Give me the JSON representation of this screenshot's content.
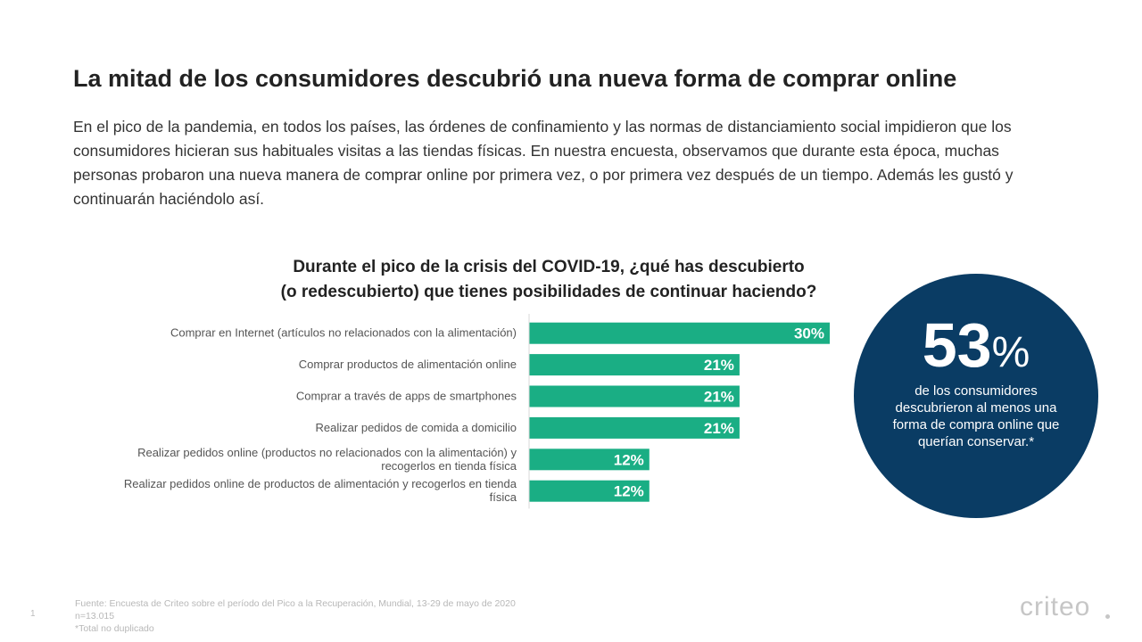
{
  "slide": {
    "title": "La mitad de los consumidores descubrió una nueva forma de comprar online",
    "intro": "En el pico de la pandemia, en todos los países, las órdenes de confinamiento y las normas de distanciamiento social impidieron que los consumidores hicieran sus habituales visitas a las tiendas físicas. En nuestra encuesta, observamos que durante esta época, muchas personas probaron una nueva manera de comprar online por primera vez, o por primera vez después de un tiempo. Además les gustó y continuarán haciéndolo así.",
    "page_number": "1",
    "footnotes": [
      "Fuente: Encuesta de Criteo sobre el período del Pico a la Recuperación, Mundial, 13-29 de mayo de 2020",
      "n=13.015",
      "*Total no duplicado"
    ],
    "logo": "criteo"
  },
  "stat": {
    "value": "53",
    "unit": "%",
    "caption": "de los consumidores descubrieron al menos una forma de compra online que querían conservar.*"
  },
  "colors": {
    "bar": "#1aae84",
    "circle": "#0a3c64",
    "axis": "#d9d9d9"
  },
  "chart_data": {
    "type": "bar",
    "orientation": "horizontal",
    "title_lines": [
      "Durante el pico de la crisis del COVID-19, ¿qué has descubierto",
      "(o redescubierto) que tienes posibilidades de continuar haciendo?"
    ],
    "categories": [
      [
        "Comprar en Internet (artículos no relacionados con la alimentación)"
      ],
      [
        "Comprar productos de alimentación online"
      ],
      [
        "Comprar a través de apps de smartphones"
      ],
      [
        "Realizar pedidos de comida a domicilio"
      ],
      [
        "Realizar pedidos online (productos no relacionados con la alimentación) y",
        "recogerlos en tienda física"
      ],
      [
        "Realizar pedidos online de productos de alimentación y recogerlos en tienda",
        "física"
      ]
    ],
    "values": [
      30,
      21,
      21,
      21,
      12,
      12
    ],
    "value_labels": [
      "30%",
      "21%",
      "21%",
      "21%",
      "12%",
      "12%"
    ],
    "unit": "%",
    "xlim": [
      0,
      30
    ],
    "grid": false,
    "legend": "none"
  }
}
